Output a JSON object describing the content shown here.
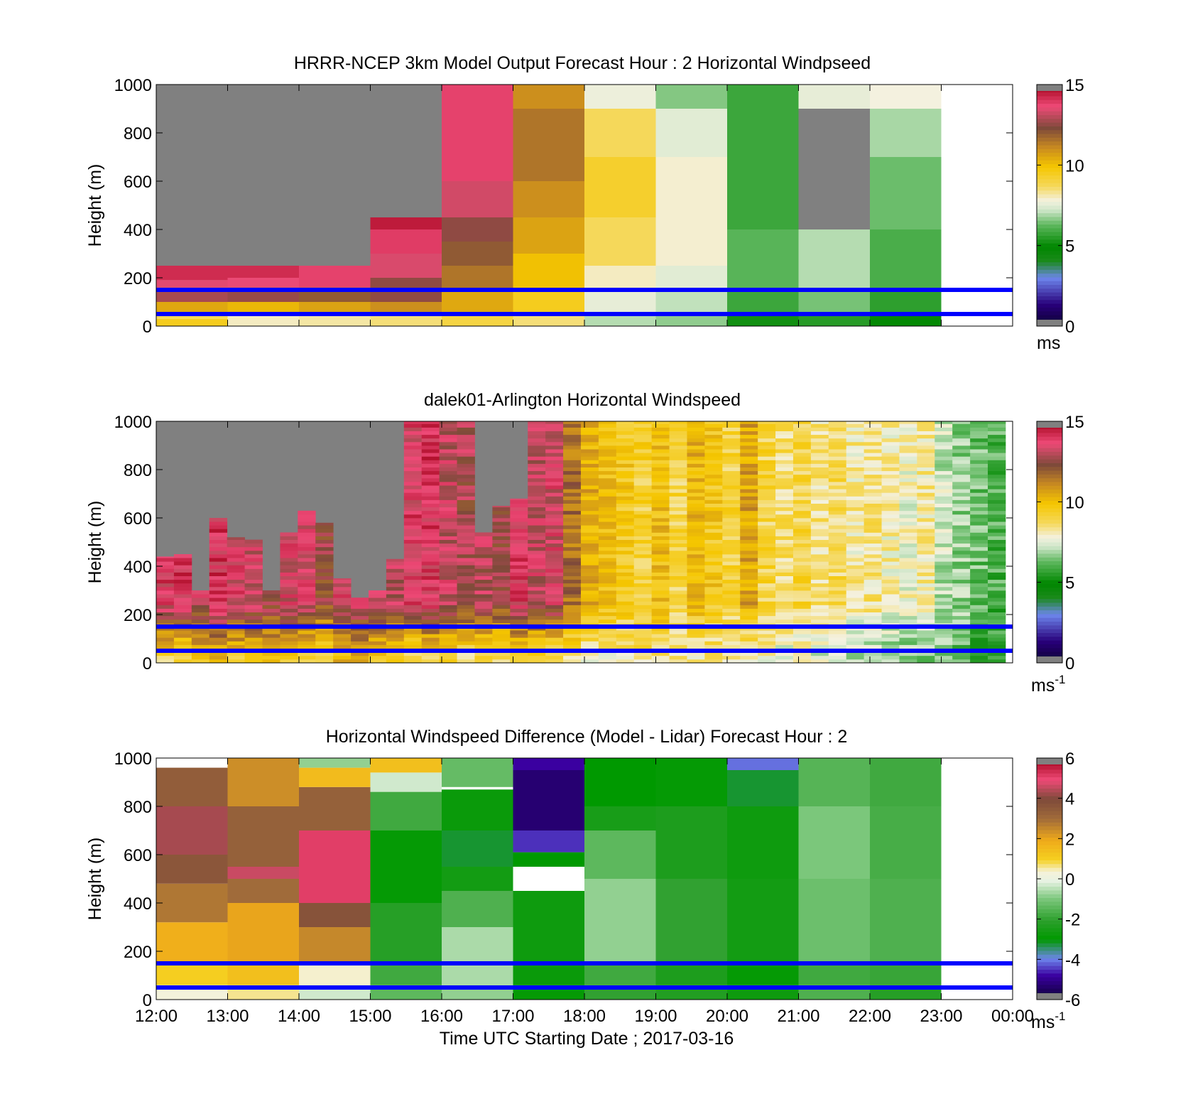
{
  "figure": {
    "xlabel": "Time UTC  Starting Date ; 2017-03-16",
    "x_tick_labels": [
      "12:00",
      "13:00",
      "14:00",
      "15:00",
      "16:00",
      "17:00",
      "18:00",
      "19:00",
      "20:00",
      "21:00",
      "22:00",
      "23:00",
      "00:00"
    ],
    "reference_line_color": "#0000ff",
    "no_data_color": "#808080"
  },
  "chart_data": [
    {
      "type": "heatmap",
      "id": "model",
      "title": "HRRR-NCEP 3km Model Output   Forecast Hour : 2 Horizontal Windpseed",
      "ylabel": "Height (m)",
      "ylim": [
        0,
        1000
      ],
      "y_ticks": [
        0,
        200,
        400,
        600,
        800,
        1000
      ],
      "xlim": [
        12,
        24
      ],
      "grid": false,
      "colorbar": {
        "min": 0,
        "max": 15,
        "ticks": [
          0,
          5,
          10,
          15
        ],
        "label": "ms",
        "label_sup": "",
        "colormap": "windspeed"
      },
      "reference_lines_m": [
        50,
        150
      ],
      "columns": [
        {
          "t0": 12,
          "t1": 13,
          "cells": [
            [
              0,
              30,
              9.5
            ],
            [
              30,
              50,
              8.8
            ],
            [
              50,
              100,
              10.5
            ],
            [
              100,
              160,
              12.8
            ],
            [
              160,
              190,
              13.5
            ],
            [
              190,
              250,
              14.2
            ],
            [
              250,
              1000,
              "nodata"
            ]
          ]
        },
        {
          "t0": 13,
          "t1": 14,
          "cells": [
            [
              0,
              50,
              8.0
            ],
            [
              50,
              100,
              10.2
            ],
            [
              100,
              160,
              12.6
            ],
            [
              160,
              200,
              13.6
            ],
            [
              200,
              250,
              14.2
            ],
            [
              250,
              1000,
              "nodata"
            ]
          ]
        },
        {
          "t0": 14,
          "t1": 15,
          "cells": [
            [
              0,
              50,
              8.2
            ],
            [
              50,
              100,
              10.6
            ],
            [
              100,
              160,
              12.0
            ],
            [
              160,
              250,
              13.8
            ],
            [
              250,
              1000,
              "nodata"
            ]
          ]
        },
        {
          "t0": 15,
          "t1": 16,
          "cells": [
            [
              0,
              50,
              8.5
            ],
            [
              50,
              100,
              11.0
            ],
            [
              100,
              200,
              12.5
            ],
            [
              200,
              300,
              13.4
            ],
            [
              300,
              400,
              13.9
            ],
            [
              400,
              450,
              14.5
            ],
            [
              450,
              1000,
              "nodata"
            ]
          ]
        },
        {
          "t0": 16,
          "t1": 17,
          "cells": [
            [
              0,
              50,
              9.0
            ],
            [
              50,
              150,
              10.5
            ],
            [
              150,
              250,
              11.5
            ],
            [
              250,
              350,
              12.0
            ],
            [
              350,
              450,
              12.5
            ],
            [
              450,
              600,
              13.3
            ],
            [
              600,
              1000,
              13.8
            ]
          ]
        },
        {
          "t0": 17,
          "t1": 18,
          "cells": [
            [
              0,
              50,
              8.5
            ],
            [
              50,
              150,
              9.5
            ],
            [
              150,
              300,
              10.0
            ],
            [
              300,
              450,
              10.6
            ],
            [
              450,
              600,
              11.0
            ],
            [
              600,
              900,
              11.5
            ],
            [
              900,
              1000,
              11.0
            ]
          ]
        },
        {
          "t0": 18,
          "t1": 19,
          "cells": [
            [
              0,
              50,
              7.0
            ],
            [
              50,
              150,
              7.6
            ],
            [
              150,
              250,
              8.0
            ],
            [
              250,
              450,
              8.7
            ],
            [
              450,
              700,
              9.3
            ],
            [
              700,
              900,
              8.7
            ],
            [
              900,
              1000,
              7.7
            ]
          ]
        },
        {
          "t0": 19,
          "t1": 20,
          "cells": [
            [
              0,
              50,
              6.7
            ],
            [
              50,
              150,
              7.1
            ],
            [
              150,
              250,
              7.5
            ],
            [
              250,
              700,
              7.9
            ],
            [
              700,
              900,
              7.5
            ],
            [
              900,
              1000,
              6.6
            ]
          ]
        },
        {
          "t0": 20,
          "t1": 21,
          "cells": [
            [
              0,
              50,
              5.2
            ],
            [
              50,
              150,
              5.8
            ],
            [
              150,
              400,
              6.2
            ],
            [
              400,
              1000,
              5.8
            ]
          ]
        },
        {
          "t0": 21,
          "t1": 22,
          "cells": [
            [
              0,
              50,
              5.5
            ],
            [
              50,
              150,
              6.5
            ],
            [
              150,
              400,
              7.0
            ],
            [
              400,
              900,
              "nodata"
            ],
            [
              900,
              1000,
              7.6
            ]
          ]
        },
        {
          "t0": 22,
          "t1": 23,
          "cells": [
            [
              0,
              50,
              5.0
            ],
            [
              50,
              150,
              5.6
            ],
            [
              150,
              400,
              6.0
            ],
            [
              400,
              700,
              6.4
            ],
            [
              700,
              900,
              6.9
            ],
            [
              900,
              1000,
              7.8
            ]
          ]
        }
      ]
    },
    {
      "type": "heatmap",
      "id": "lidar",
      "title": "dalek01-Arlington  Horizontal Windspeed",
      "ylabel": "Height (m)",
      "ylim": [
        0,
        1000
      ],
      "y_ticks": [
        0,
        200,
        400,
        600,
        800,
        1000
      ],
      "xlim": [
        12,
        24
      ],
      "grid": false,
      "colorbar": {
        "min": 0,
        "max": 15,
        "ticks": [
          0,
          5,
          10,
          15
        ],
        "label": "ms",
        "label_sup": "-1",
        "colormap": "windspeed"
      },
      "reference_lines_m": [
        50,
        150
      ],
      "profiles": {
        "start_hour": 12,
        "end_hour": 23.9,
        "columns": 48,
        "bin_m": 15,
        "top_heights_m": [
          440,
          450,
          300,
          600,
          520,
          510,
          300,
          540,
          630,
          580,
          350,
          270,
          300,
          430,
          1000,
          1000,
          1000,
          1000,
          540,
          650,
          680,
          1000,
          1000,
          1000,
          1000,
          1000,
          1000,
          1000,
          1000,
          1000,
          1000,
          1000,
          1000,
          1000,
          1000,
          1000,
          1000,
          1000,
          1000,
          1000,
          1000,
          1000,
          1000,
          1000,
          1000,
          1000,
          1000,
          1000
        ],
        "upper_speed_m_s": [
          13.8,
          13.9,
          13.2,
          13.9,
          13.5,
          13.2,
          12.8,
          13.4,
          13.6,
          12.5,
          13.4,
          13.6,
          13.4,
          13.0,
          13.7,
          13.9,
          13.2,
          12.8,
          13.0,
          12.8,
          13.8,
          13.2,
          13.4,
          11.6,
          10.4,
          10.0,
          9.6,
          9.2,
          10.0,
          9.0,
          10.2,
          9.6,
          9.0,
          10.6,
          9.0,
          8.6,
          9.0,
          8.4,
          8.8,
          8.2,
          8.4,
          8.0,
          7.8,
          8.2,
          7.2,
          6.8,
          6.3,
          6.0
        ],
        "near_surface_speed_m_s": [
          9.0,
          8.8,
          10.0,
          10.0,
          9.5,
          9.8,
          10.0,
          9.5,
          9.0,
          8.8,
          10.0,
          10.2,
          9.6,
          9.0,
          8.7,
          9.0,
          9.0,
          8.6,
          9.0,
          8.5,
          8.8,
          9.0,
          8.6,
          8.4,
          8.0,
          8.2,
          8.2,
          8.6,
          8.5,
          8.4,
          8.0,
          8.3,
          8.1,
          7.8,
          7.8,
          7.6,
          7.5,
          7.4,
          7.2,
          7.0,
          6.8,
          6.6,
          6.6,
          6.4,
          6.4,
          6.2,
          5.8,
          5.5
        ]
      }
    },
    {
      "type": "heatmap",
      "id": "difference",
      "title": "Horizontal Windspeed Difference (Model - Lidar) Forecast Hour : 2",
      "ylabel": "Height (m)",
      "ylim": [
        0,
        1000
      ],
      "y_ticks": [
        0,
        200,
        400,
        600,
        800,
        1000
      ],
      "xlim": [
        12,
        24
      ],
      "grid": false,
      "colorbar": {
        "min": -6,
        "max": 6,
        "ticks": [
          -6,
          -4,
          -2,
          0,
          2,
          4,
          6
        ],
        "label": "ms",
        "label_sup": "-1",
        "colormap": "difference"
      },
      "reference_lines_m": [
        50,
        150
      ],
      "columns": [
        {
          "t0": 12,
          "t1": 13,
          "cells": [
            [
              0,
              60,
              0.3
            ],
            [
              60,
              150,
              1.0
            ],
            [
              150,
              320,
              1.8
            ],
            [
              320,
              480,
              2.8
            ],
            [
              480,
              600,
              3.6
            ],
            [
              600,
              800,
              4.3
            ],
            [
              800,
              960,
              3.4
            ]
          ]
        },
        {
          "t0": 13,
          "t1": 14,
          "cells": [
            [
              0,
              60,
              0.6
            ],
            [
              60,
              150,
              1.4
            ],
            [
              150,
              400,
              2.0
            ],
            [
              400,
              500,
              3.0
            ],
            [
              500,
              550,
              4.6
            ],
            [
              550,
              800,
              3.3
            ],
            [
              800,
              1000,
              2.4
            ]
          ]
        },
        {
          "t0": 14,
          "t1": 15,
          "cells": [
            [
              0,
              60,
              -0.3
            ],
            [
              60,
              150,
              0.4
            ],
            [
              150,
              300,
              2.5
            ],
            [
              300,
              400,
              3.7
            ],
            [
              400,
              700,
              5.1
            ],
            [
              700,
              880,
              3.3
            ],
            [
              880,
              960,
              1.5
            ],
            [
              960,
              1000,
              -0.8
            ]
          ]
        },
        {
          "t0": 15,
          "t1": 16,
          "cells": [
            [
              0,
              60,
              -1.4
            ],
            [
              60,
              150,
              -1.8
            ],
            [
              150,
              400,
              -2.2
            ],
            [
              400,
              700,
              -2.9
            ],
            [
              700,
              860,
              -1.8
            ],
            [
              860,
              940,
              -0.3
            ],
            [
              940,
              1000,
              1.4
            ]
          ]
        },
        {
          "t0": 16,
          "t1": 17,
          "cells": [
            [
              0,
              60,
              -0.8
            ],
            [
              60,
              150,
              -0.6
            ],
            [
              150,
              300,
              -0.6
            ],
            [
              300,
              450,
              -1.6
            ],
            [
              450,
              550,
              -2.6
            ],
            [
              550,
              700,
              -3.2
            ],
            [
              700,
              870,
              -2.8
            ],
            [
              870,
              880,
              "blank"
            ],
            [
              880,
              1000,
              -1.3
            ]
          ]
        },
        {
          "t0": 17,
          "t1": 18,
          "cells": [
            [
              0,
              60,
              -2.9
            ],
            [
              60,
              150,
              -2.8
            ],
            [
              150,
              450,
              -2.7
            ],
            [
              450,
              550,
              "blank"
            ],
            [
              550,
              610,
              -3.0
            ],
            [
              610,
              700,
              -4.5
            ],
            [
              700,
              950,
              -5.3
            ],
            [
              950,
              1000,
              -4.8
            ]
          ]
        },
        {
          "t0": 18,
          "t1": 19,
          "cells": [
            [
              0,
              60,
              -2.0
            ],
            [
              60,
              150,
              -1.8
            ],
            [
              150,
              500,
              -0.8
            ],
            [
              500,
              700,
              -1.4
            ],
            [
              700,
              800,
              -2.5
            ],
            [
              800,
              1000,
              -3.0
            ]
          ]
        },
        {
          "t0": 19,
          "t1": 20,
          "cells": [
            [
              0,
              60,
              -2.3
            ],
            [
              60,
              150,
              -2.4
            ],
            [
              150,
              500,
              -2.0
            ],
            [
              500,
              800,
              -2.4
            ],
            [
              800,
              1000,
              -2.9
            ]
          ]
        },
        {
          "t0": 20,
          "t1": 21,
          "cells": [
            [
              0,
              60,
              -2.7
            ],
            [
              60,
              150,
              -2.9
            ],
            [
              150,
              500,
              -2.6
            ],
            [
              500,
              800,
              -2.7
            ],
            [
              800,
              950,
              -3.2
            ],
            [
              950,
              1000,
              -4.1
            ]
          ]
        },
        {
          "t0": 21,
          "t1": 22,
          "cells": [
            [
              0,
              60,
              -1.6
            ],
            [
              60,
              150,
              -1.8
            ],
            [
              150,
              500,
              -1.2
            ],
            [
              500,
              800,
              -1.0
            ],
            [
              800,
              1000,
              -1.5
            ]
          ]
        },
        {
          "t0": 22,
          "t1": 23,
          "cells": [
            [
              0,
              60,
              -2.2
            ],
            [
              60,
              150,
              -1.9
            ],
            [
              150,
              500,
              -1.6
            ],
            [
              500,
              800,
              -1.7
            ],
            [
              800,
              1000,
              -1.8
            ]
          ]
        }
      ]
    }
  ]
}
